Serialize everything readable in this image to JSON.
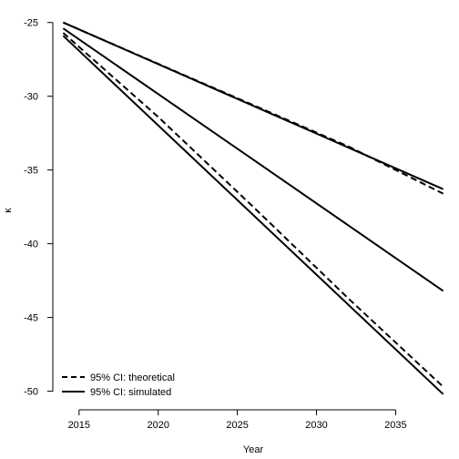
{
  "chart_data": {
    "type": "line",
    "xlabel": "Year",
    "ylabel": "κ",
    "xlim": [
      2013.4,
      2038.6
    ],
    "ylim": [
      -51.2,
      -24.4
    ],
    "xticks": [
      2015,
      2020,
      2025,
      2030,
      2035
    ],
    "yticks": [
      -25,
      -30,
      -35,
      -40,
      -45,
      -50
    ],
    "xtick_labels": [
      "2015",
      "2020",
      "2025",
      "2030",
      "2035"
    ],
    "ytick_labels": [
      "-25",
      "-30",
      "-35",
      "-40",
      "-45",
      "-50"
    ],
    "grid": false,
    "legend_position": "bottom-left",
    "line_color": "#000000",
    "series": [
      {
        "group": "central",
        "style": "solid",
        "x": [
          2014,
          2038
        ],
        "y": [
          -25.4,
          -43.2
        ]
      },
      {
        "group": "theoretical",
        "style": "dashed",
        "x": [
          2014,
          2020,
          2026,
          2032,
          2038
        ],
        "y": [
          -25.0,
          -27.8,
          -30.6,
          -33.4,
          -36.6
        ]
      },
      {
        "group": "theoretical",
        "style": "dashed",
        "x": [
          2014,
          2020,
          2026,
          2032,
          2038
        ],
        "y": [
          -25.7,
          -31.4,
          -37.5,
          -43.7,
          -49.7
        ]
      },
      {
        "group": "simulated",
        "style": "solid",
        "x": [
          2014,
          2038
        ],
        "y": [
          -25.0,
          -36.3
        ]
      },
      {
        "group": "simulated",
        "style": "solid",
        "x": [
          2014,
          2038
        ],
        "y": [
          -25.9,
          -50.2
        ]
      }
    ],
    "legend": [
      {
        "label": "95% CI: theoretical",
        "style": "dashed"
      },
      {
        "label": "95% CI: simulated",
        "style": "solid"
      }
    ]
  }
}
